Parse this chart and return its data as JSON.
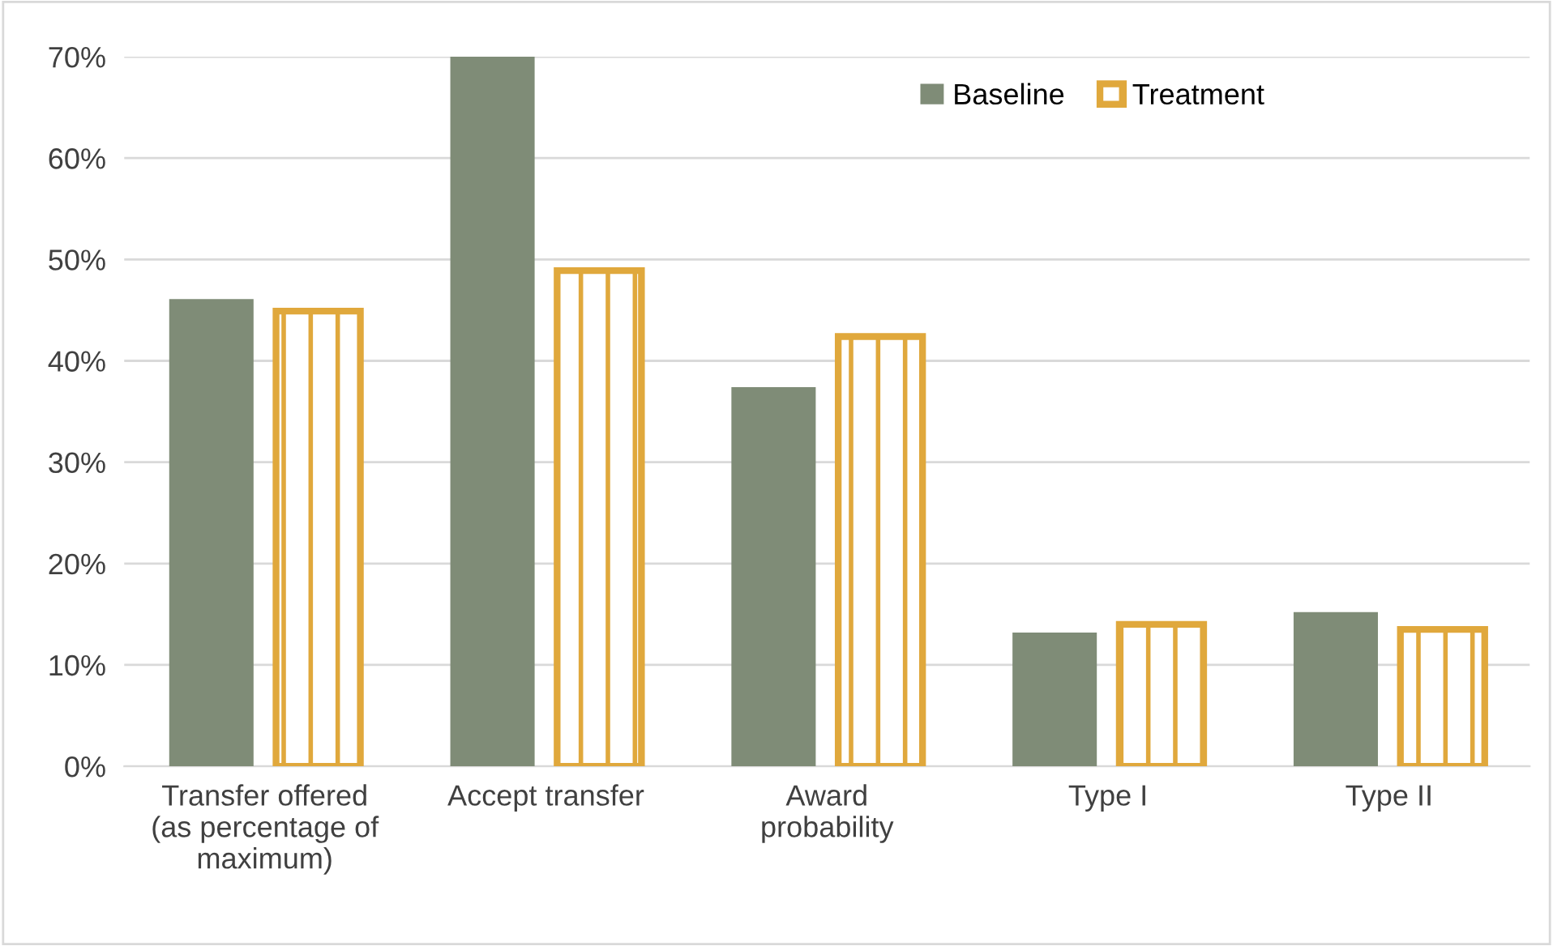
{
  "chart_data": {
    "type": "bar",
    "categories": [
      "Transfer offered\n(as percentage of\nmaximum)",
      "Accept transfer",
      "Award\nprobability",
      "Type I",
      "Type II"
    ],
    "series": [
      {
        "name": "Baseline",
        "color": "#7f8c77",
        "values": [
          0.461,
          0.7,
          0.374,
          0.132,
          0.152
        ]
      },
      {
        "name": "Treatment",
        "color": "#e0a83c",
        "values": [
          0.449,
          0.489,
          0.424,
          0.14,
          0.135
        ]
      }
    ],
    "ylim": [
      0,
      0.7
    ],
    "yticks": [
      {
        "value": 0,
        "label": "0%"
      },
      {
        "value": 0.1,
        "label": "10%"
      },
      {
        "value": 0.2,
        "label": "20%"
      },
      {
        "value": 0.3,
        "label": "30%"
      },
      {
        "value": 0.4,
        "label": "40%"
      },
      {
        "value": 0.5,
        "label": "50%"
      },
      {
        "value": 0.6,
        "label": "60%"
      },
      {
        "value": 0.7,
        "label": "70%"
      }
    ],
    "grid": "y",
    "legend": "top right"
  }
}
